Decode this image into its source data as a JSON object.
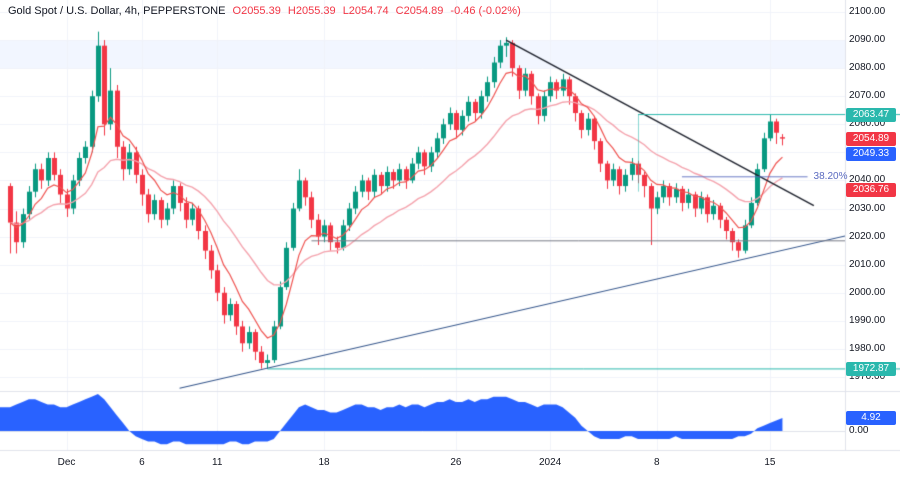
{
  "legend": {
    "symbol": "Gold Spot / U.S. Dollar, 4h, PEPPERSTONE",
    "open": "O2055.39",
    "high": "H2055.39",
    "low": "L2054.74",
    "close": "C2054.89",
    "change": "-0.46 (-0.02%)"
  },
  "colors": {
    "up": "#089981",
    "down": "#f23645",
    "accent_teal": "#2ab8ad",
    "accent_blue": "#2962ff",
    "accent_red": "#f23645",
    "ma_fast": "#ef5350",
    "ma_slow": "#f4a3ad",
    "indicator_fill": "#2962ff",
    "trend_black": "#1e222d",
    "trend_blue": "#34558b",
    "level_gray": "#787b86",
    "fib_color": "#5b6bc0",
    "grid": "#f0f3fa",
    "band": "rgba(41,98,255,0.06)",
    "text": "#131722",
    "separator": "#e0e3eb"
  },
  "axis": {
    "price_ticks": [
      {
        "price": 2100,
        "label": "2100.00"
      },
      {
        "price": 2090,
        "label": "2090.00"
      },
      {
        "price": 2080,
        "label": "2080.00"
      },
      {
        "price": 2070,
        "label": "2070.00"
      },
      {
        "price": 2060,
        "label": "2060.00"
      },
      {
        "price": 2050,
        "label": "2050.00"
      },
      {
        "price": 2040,
        "label": "2040.00"
      },
      {
        "price": 2030,
        "label": "2030.00"
      },
      {
        "price": 2020,
        "label": "2020.00"
      },
      {
        "price": 2010,
        "label": "2010.00"
      },
      {
        "price": 2000,
        "label": "2000.00"
      },
      {
        "price": 1990,
        "label": "1990.00"
      },
      {
        "price": 1980,
        "label": "1980.00"
      },
      {
        "price": 1970,
        "label": "1970.00"
      }
    ],
    "time_ticks": [
      {
        "i": 9,
        "label": "Dec"
      },
      {
        "i": 21,
        "label": "6"
      },
      {
        "i": 33,
        "label": "11"
      },
      {
        "i": 50,
        "label": "18"
      },
      {
        "i": 71,
        "label": "26"
      },
      {
        "i": 86,
        "label": "2024"
      },
      {
        "i": 103,
        "label": "8"
      },
      {
        "i": 121,
        "label": "15"
      }
    ],
    "indicator_zero_label": "0.00"
  },
  "badges": [
    {
      "label": "2063.47",
      "price": 2063.47,
      "bg": "#2ab8ad"
    },
    {
      "label": "2054.89",
      "price": 2054.89,
      "bg": "#f23645"
    },
    {
      "label": "2049.33",
      "price": 2049.33,
      "bg": "#2962ff"
    },
    {
      "label": "2036.76",
      "price": 2036.76,
      "bg": "#f23645"
    },
    {
      "label": "1972.87",
      "price": 1972.87,
      "bg": "#2ab8ad"
    }
  ],
  "indicator_badge": {
    "label": "4.92",
    "value": 4.92,
    "bg": "#2962ff"
  },
  "fib": {
    "label": "38.20%",
    "price": 2041.3,
    "from_i": 107,
    "to_i": 127
  },
  "chart_data": {
    "type": "candlestick",
    "title": "Gold Spot / U.S. Dollar",
    "timeframe": "4h",
    "exchange": "PEPPERSTONE",
    "ohlc_current": {
      "o": 2055.39,
      "h": 2055.39,
      "l": 2054.74,
      "c": 2054.89,
      "change": -0.46,
      "change_pct": -0.02
    },
    "price_axis_range": [
      1965,
      2104
    ],
    "ma_periods": [
      7,
      21
    ],
    "candles": [
      [
        2038,
        2039,
        2014,
        2025
      ],
      [
        2025,
        2029,
        2014,
        2018
      ],
      [
        2018,
        2030,
        2016,
        2028
      ],
      [
        2028,
        2038,
        2026,
        2036
      ],
      [
        2036,
        2046,
        2034,
        2044
      ],
      [
        2044,
        2046,
        2037,
        2040
      ],
      [
        2040,
        2050,
        2038,
        2048
      ],
      [
        2048,
        2050,
        2040,
        2042
      ],
      [
        2042,
        2044,
        2032,
        2035
      ],
      [
        2035,
        2037,
        2027,
        2030
      ],
      [
        2030,
        2042,
        2028,
        2040
      ],
      [
        2040,
        2050,
        2038,
        2048
      ],
      [
        2048,
        2054,
        2046,
        2052
      ],
      [
        2052,
        2072,
        2050,
        2070
      ],
      [
        2070,
        2093,
        2068,
        2088
      ],
      [
        2088,
        2090,
        2056,
        2060
      ],
      [
        2060,
        2080,
        2058,
        2072
      ],
      [
        2072,
        2074,
        2048,
        2052
      ],
      [
        2052,
        2054,
        2040,
        2044
      ],
      [
        2044,
        2053,
        2042,
        2050
      ],
      [
        2050,
        2052,
        2039,
        2042
      ],
      [
        2042,
        2044,
        2031,
        2035
      ],
      [
        2035,
        2037,
        2025,
        2028
      ],
      [
        2028,
        2035,
        2026,
        2033
      ],
      [
        2033,
        2034,
        2023,
        2026
      ],
      [
        2026,
        2032,
        2024,
        2030
      ],
      [
        2030,
        2040,
        2028,
        2038
      ],
      [
        2038,
        2039,
        2029,
        2032
      ],
      [
        2032,
        2034,
        2023,
        2026
      ],
      [
        2026,
        2032,
        2024,
        2030
      ],
      [
        2030,
        2031,
        2019,
        2022
      ],
      [
        2022,
        2024,
        2012,
        2015
      ],
      [
        2015,
        2017,
        2005,
        2008
      ],
      [
        2008,
        2010,
        1997,
        2000
      ],
      [
        2000,
        2002,
        1989,
        1992
      ],
      [
        1992,
        1998,
        1990,
        1996
      ],
      [
        1996,
        1997,
        1985,
        1988
      ],
      [
        1988,
        1990,
        1979,
        1982
      ],
      [
        1982,
        1988,
        1980,
        1986
      ],
      [
        1986,
        1987,
        1976,
        1979
      ],
      [
        1979,
        1981,
        1973,
        1975
      ],
      [
        1975,
        1978,
        1972.9,
        1976
      ],
      [
        1976,
        1990,
        1975,
        1988
      ],
      [
        1988,
        2004,
        1987,
        2002
      ],
      [
        2002,
        2018,
        2001,
        2016
      ],
      [
        2016,
        2032,
        2015,
        2030
      ],
      [
        2030,
        2044,
        2029,
        2040
      ],
      [
        2040,
        2041,
        2031,
        2034
      ],
      [
        2034,
        2036,
        2023,
        2026
      ],
      [
        2026,
        2028,
        2017,
        2020
      ],
      [
        2020,
        2026,
        2018,
        2024
      ],
      [
        2024,
        2025,
        2015,
        2018
      ],
      [
        2018,
        2020,
        2014,
        2016
      ],
      [
        2016,
        2026,
        2015,
        2024
      ],
      [
        2024,
        2032,
        2022,
        2030
      ],
      [
        2030,
        2038,
        2028,
        2036
      ],
      [
        2036,
        2042,
        2034,
        2040
      ],
      [
        2040,
        2041,
        2033,
        2036
      ],
      [
        2036,
        2044,
        2034,
        2042
      ],
      [
        2042,
        2043,
        2035,
        2038
      ],
      [
        2038,
        2045,
        2036,
        2043
      ],
      [
        2043,
        2044,
        2037,
        2040
      ],
      [
        2040,
        2046,
        2038,
        2044
      ],
      [
        2044,
        2045,
        2037,
        2040
      ],
      [
        2040,
        2048,
        2039,
        2046
      ],
      [
        2046,
        2052,
        2044,
        2050
      ],
      [
        2050,
        2051,
        2042,
        2045
      ],
      [
        2045,
        2052,
        2043,
        2050
      ],
      [
        2050,
        2057,
        2048,
        2055
      ],
      [
        2055,
        2062,
        2053,
        2060
      ],
      [
        2060,
        2066,
        2058,
        2064
      ],
      [
        2064,
        2065,
        2055,
        2058
      ],
      [
        2058,
        2065,
        2056,
        2063
      ],
      [
        2063,
        2070,
        2061,
        2068
      ],
      [
        2068,
        2069,
        2061,
        2064
      ],
      [
        2064,
        2072,
        2062,
        2070
      ],
      [
        2070,
        2077,
        2068,
        2075
      ],
      [
        2075,
        2084,
        2073,
        2082
      ],
      [
        2082,
        2090,
        2080,
        2088
      ],
      [
        2088,
        2091,
        2084,
        2089
      ],
      [
        2089,
        2090,
        2077,
        2080
      ],
      [
        2080,
        2081,
        2069,
        2072
      ],
      [
        2072,
        2080,
        2070,
        2078
      ],
      [
        2078,
        2079,
        2067,
        2070
      ],
      [
        2070,
        2071,
        2060,
        2063
      ],
      [
        2063,
        2072,
        2061,
        2070
      ],
      [
        2070,
        2077,
        2068,
        2075
      ],
      [
        2075,
        2076,
        2069,
        2072
      ],
      [
        2072,
        2078,
        2070,
        2076
      ],
      [
        2076,
        2077,
        2067,
        2070
      ],
      [
        2070,
        2071,
        2061,
        2064
      ],
      [
        2064,
        2065,
        2055,
        2058
      ],
      [
        2058,
        2064,
        2056,
        2062
      ],
      [
        2062,
        2063,
        2051,
        2054
      ],
      [
        2054,
        2055,
        2043,
        2046
      ],
      [
        2046,
        2047,
        2037,
        2040
      ],
      [
        2040,
        2046,
        2038,
        2044
      ],
      [
        2044,
        2045,
        2035,
        2038
      ],
      [
        2038,
        2044,
        2036,
        2042
      ],
      [
        2042,
        2048,
        2040,
        2046
      ],
      [
        2046,
        2047,
        2039,
        2042
      ],
      [
        2042,
        2043,
        2034,
        2038
      ],
      [
        2038,
        2039,
        2017,
        2030
      ],
      [
        2030,
        2036,
        2028,
        2034
      ],
      [
        2034,
        2040,
        2032,
        2038
      ],
      [
        2038,
        2039,
        2031,
        2034
      ],
      [
        2034,
        2039,
        2032,
        2037
      ],
      [
        2037,
        2038,
        2029,
        2032
      ],
      [
        2032,
        2037,
        2030,
        2035
      ],
      [
        2035,
        2036,
        2027,
        2030
      ],
      [
        2030,
        2036,
        2028,
        2034
      ],
      [
        2034,
        2035,
        2025,
        2028
      ],
      [
        2028,
        2033,
        2026,
        2031
      ],
      [
        2031,
        2032,
        2023,
        2026
      ],
      [
        2026,
        2027,
        2019,
        2022
      ],
      [
        2022,
        2023,
        2015,
        2018
      ],
      [
        2018,
        2019,
        2012.5,
        2015
      ],
      [
        2015,
        2026,
        2014,
        2024
      ],
      [
        2024,
        2034,
        2023,
        2032
      ],
      [
        2032,
        2046,
        2031,
        2044
      ],
      [
        2044,
        2057,
        2043,
        2055
      ],
      [
        2055,
        2063.5,
        2054,
        2061
      ],
      [
        2061,
        2062,
        2053,
        2057
      ],
      [
        2055.4,
        2056.5,
        2052.5,
        2054.9
      ]
    ],
    "annotations": {
      "descending_trendline": {
        "from": {
          "i": 79,
          "price": 2090
        },
        "to": {
          "i": 128,
          "price": 2031
        }
      },
      "ascending_trendline": {
        "from": {
          "i": 27,
          "price": 1966
        },
        "to": {
          "i": 135,
          "price": 2021
        }
      },
      "horizontal_support": {
        "price": 2018.5,
        "from_i": 48,
        "to_i": 134
      },
      "resistance_level": {
        "price": 2063.47,
        "from_i": 100
      },
      "support_level": {
        "price": 1972.87,
        "from_i": 41
      },
      "fib_382": {
        "price": 2041.3,
        "from_i": 107,
        "to_i": 127
      },
      "highlight_band": {
        "from_price": 2080,
        "to_price": 2090
      }
    },
    "indicator": {
      "name": "oscillator",
      "current": 4.92,
      "values": [
        9,
        10,
        11,
        12,
        12,
        11,
        10,
        10,
        9,
        9,
        10,
        11,
        12,
        13,
        14,
        12,
        9,
        6,
        3,
        0,
        -2,
        -3,
        -4,
        -4,
        -5,
        -5,
        -4,
        -4,
        -5,
        -5,
        -5,
        -5,
        -5,
        -5,
        -5,
        -4,
        -4,
        -5,
        -5,
        -4,
        -4,
        -4,
        -3,
        0,
        3,
        6,
        9,
        10,
        9,
        8,
        8,
        7,
        7,
        8,
        9,
        10,
        10,
        9,
        9,
        8,
        9,
        9,
        10,
        9,
        10,
        10,
        9,
        10,
        11,
        11,
        12,
        11,
        11,
        12,
        11,
        12,
        12,
        13,
        13,
        13,
        12,
        11,
        11,
        10,
        9,
        10,
        10,
        10,
        9,
        7,
        5,
        2,
        0,
        -2,
        -3,
        -3,
        -3,
        -3,
        -2,
        -2,
        -3,
        -3,
        -3,
        -3,
        -3,
        -3,
        -2,
        -3,
        -3,
        -3,
        -3,
        -3,
        -3,
        -3,
        -3,
        -3,
        -2,
        -2,
        -1,
        1,
        2,
        3,
        4,
        4.92
      ]
    }
  }
}
